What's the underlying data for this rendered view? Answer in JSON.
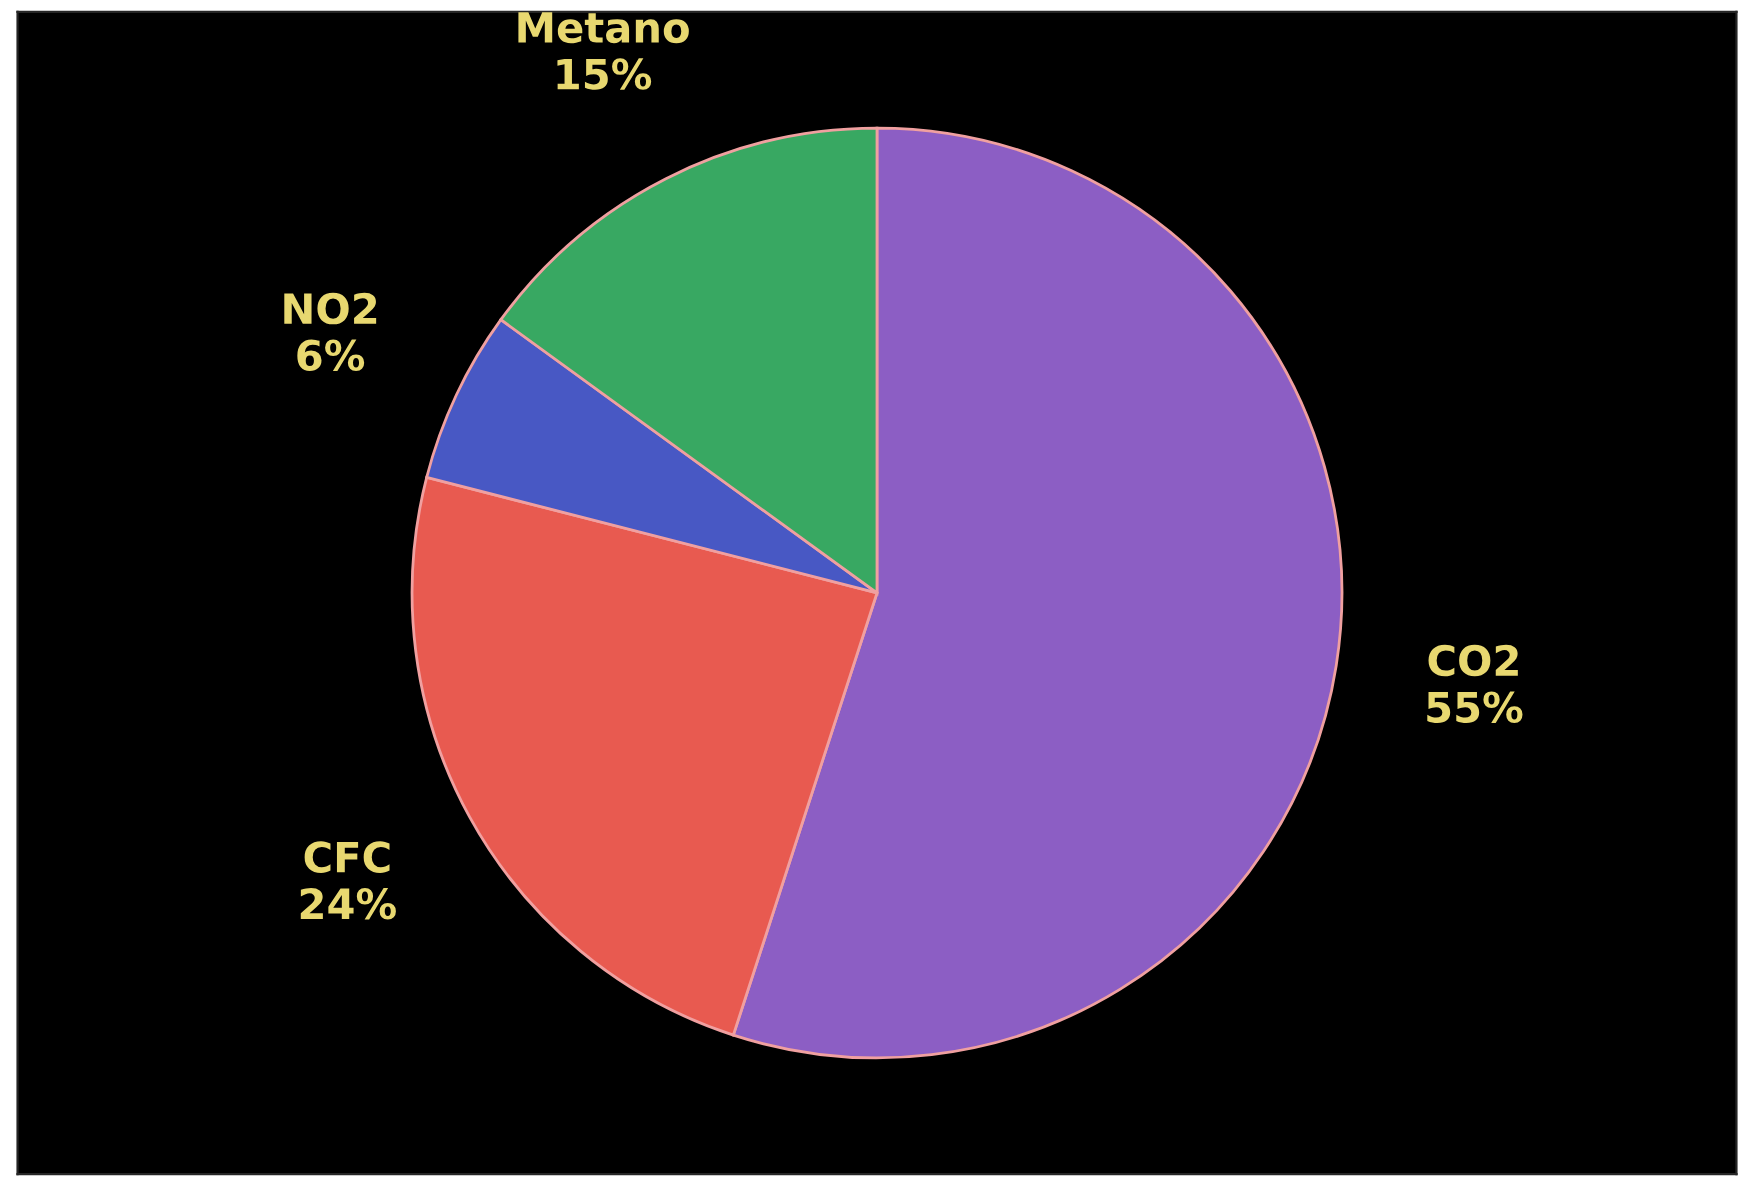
{
  "chart_data": {
    "type": "pie",
    "categories": [
      "CO2",
      "CFC",
      "NO2",
      "Metano"
    ],
    "values": [
      55,
      24,
      6,
      15
    ],
    "value_labels": [
      "55%",
      "24%",
      "6%",
      "15%"
    ],
    "colors": [
      "#8c5ec4",
      "#e85a50",
      "#4858c4",
      "#38a862"
    ],
    "legend": false
  }
}
